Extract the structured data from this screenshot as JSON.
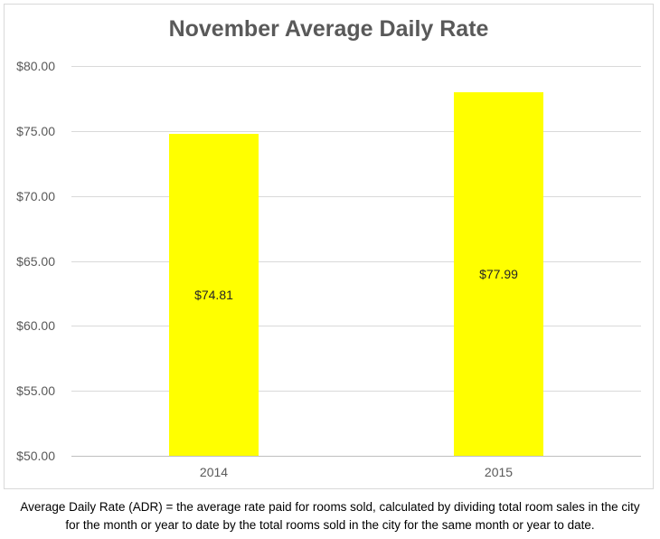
{
  "title": "November Average Daily Rate",
  "chart_data": {
    "type": "bar",
    "title": "November Average Daily Rate",
    "categories": [
      "2014",
      "2015"
    ],
    "values": [
      74.81,
      77.99
    ],
    "data_labels": [
      "$74.81",
      "$77.99"
    ],
    "data_label_position": "center",
    "xlabel": "",
    "ylabel": "",
    "ylim": [
      50,
      80
    ],
    "ytick_step": 5,
    "ytick_labels": [
      "$50.00",
      "$55.00",
      "$60.00",
      "$65.00",
      "$70.00",
      "$75.00",
      "$80.00"
    ],
    "grid": true,
    "legend": false
  },
  "colors": {
    "bar_fill": "#ffff00",
    "title_text": "#595959",
    "axis_text": "#595959",
    "data_label_text": "#262626",
    "gridline": "#d9d9d9",
    "axis_line": "#bfbfbf",
    "frame_border": "#d9d9d9",
    "background": "#ffffff"
  },
  "footnote": {
    "line1": "Average Daily Rate (ADR) = the average rate paid for rooms sold, calculated by dividing total room sales in the city",
    "line2": "for the month or year to date by the total rooms sold in the city for the same month or year to date."
  }
}
